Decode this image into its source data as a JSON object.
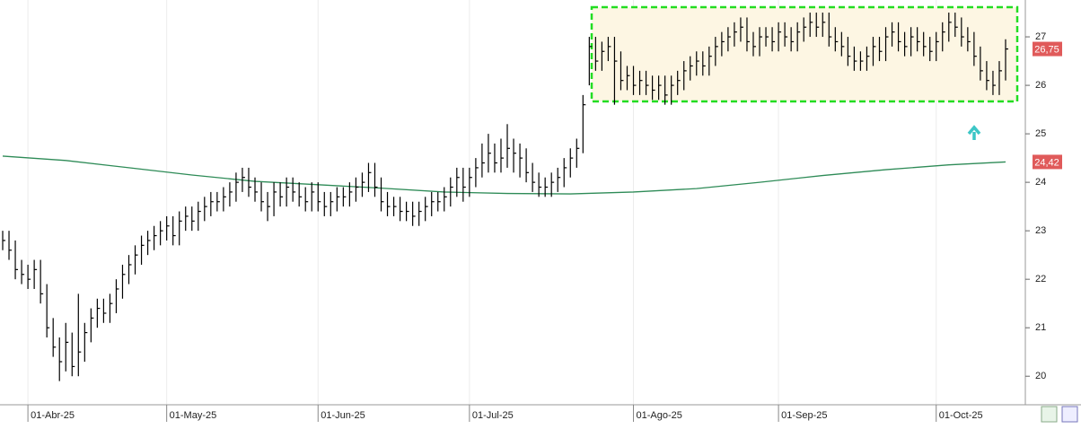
{
  "chart_data": {
    "type": "ohlc",
    "categories": [
      null,
      null,
      null,
      null,
      "01-Abr-25",
      null,
      null,
      null,
      null,
      null,
      null,
      null,
      null,
      null,
      null,
      null,
      null,
      null,
      null,
      null,
      null,
      null,
      null,
      null,
      null,
      null,
      "01-May-25",
      null,
      null,
      null,
      null,
      null,
      null,
      null,
      null,
      null,
      null,
      null,
      null,
      null,
      null,
      null,
      null,
      null,
      null,
      null,
      null,
      null,
      null,
      null,
      "01-Jun-25",
      null,
      null,
      null,
      null,
      null,
      null,
      null,
      null,
      null,
      null,
      null,
      null,
      null,
      null,
      null,
      null,
      null,
      null,
      null,
      null,
      null,
      null,
      null,
      "01-Jul-25",
      null,
      null,
      null,
      null,
      null,
      null,
      null,
      null,
      null,
      null,
      null,
      null,
      null,
      null,
      null,
      null,
      null,
      null,
      null,
      null,
      null,
      null,
      null,
      null,
      null,
      "01-Ago-25",
      null,
      null,
      null,
      null,
      null,
      null,
      null,
      null,
      null,
      null,
      null,
      null,
      null,
      null,
      null,
      null,
      null,
      null,
      null,
      null,
      null,
      null,
      "01-Sep-25",
      null,
      null,
      null,
      null,
      null,
      null,
      null,
      null,
      null,
      null,
      null,
      null,
      null,
      null,
      null,
      null,
      null,
      null,
      null,
      null,
      null,
      null,
      null,
      null,
      "01-Oct-25",
      null,
      null,
      null,
      null,
      null,
      null,
      null,
      null,
      null,
      null,
      null
    ],
    "high": [
      23.0,
      23.0,
      22.8,
      22.4,
      22.3,
      22.4,
      22.4,
      21.9,
      21.2,
      20.8,
      21.1,
      20.9,
      21.7,
      21.1,
      21.4,
      21.6,
      21.6,
      21.7,
      22.0,
      22.3,
      22.5,
      22.7,
      22.9,
      23.0,
      23.1,
      23.2,
      23.3,
      23.3,
      23.4,
      23.5,
      23.5,
      23.6,
      23.7,
      23.8,
      23.8,
      23.9,
      24.0,
      24.2,
      24.3,
      24.3,
      24.1,
      24.0,
      23.8,
      24.0,
      24.0,
      24.1,
      24.1,
      24.0,
      23.9,
      24.0,
      24.0,
      23.8,
      23.8,
      23.9,
      23.9,
      24.0,
      24.1,
      24.2,
      24.4,
      24.4,
      24.1,
      23.8,
      23.7,
      23.7,
      23.6,
      23.6,
      23.6,
      23.7,
      23.8,
      23.8,
      23.9,
      24.1,
      24.3,
      24.3,
      24.3,
      24.5,
      24.8,
      25.0,
      24.8,
      24.9,
      25.2,
      24.9,
      24.8,
      24.7,
      24.4,
      24.2,
      24.1,
      24.2,
      24.3,
      24.5,
      24.7,
      24.9,
      25.8,
      27.0,
      27.0,
      26.9,
      27.0,
      27.0,
      26.7,
      26.4,
      26.4,
      26.3,
      26.3,
      26.2,
      26.2,
      26.2,
      26.2,
      26.3,
      26.5,
      26.6,
      26.7,
      26.7,
      26.8,
      27.0,
      27.1,
      27.2,
      27.3,
      27.4,
      27.4,
      27.1,
      27.2,
      27.2,
      27.2,
      27.3,
      27.3,
      27.2,
      27.3,
      27.4,
      27.5,
      27.5,
      27.5,
      27.5,
      27.2,
      27.1,
      27.0,
      26.8,
      26.7,
      26.8,
      27.0,
      27.0,
      27.2,
      27.3,
      27.3,
      27.1,
      27.2,
      27.2,
      27.1,
      27.0,
      27.1,
      27.3,
      27.5,
      27.5,
      27.4,
      27.2,
      27.1,
      26.8,
      26.5,
      26.3,
      26.5,
      26.95
    ],
    "low": [
      22.6,
      22.4,
      22.0,
      21.9,
      21.8,
      21.8,
      21.5,
      20.8,
      20.4,
      19.9,
      20.1,
      20.0,
      20.0,
      20.3,
      20.7,
      21.0,
      21.1,
      21.1,
      21.3,
      21.6,
      21.9,
      22.1,
      22.3,
      22.5,
      22.6,
      22.7,
      22.8,
      22.7,
      22.7,
      23.0,
      23.0,
      23.0,
      23.2,
      23.3,
      23.4,
      23.4,
      23.5,
      23.6,
      23.8,
      23.7,
      23.6,
      23.4,
      23.2,
      23.3,
      23.5,
      23.5,
      23.6,
      23.5,
      23.4,
      23.4,
      23.4,
      23.3,
      23.3,
      23.4,
      23.5,
      23.5,
      23.6,
      23.7,
      23.8,
      23.7,
      23.4,
      23.3,
      23.3,
      23.2,
      23.2,
      23.1,
      23.1,
      23.2,
      23.3,
      23.4,
      23.4,
      23.5,
      23.7,
      23.6,
      23.7,
      23.9,
      24.1,
      24.2,
      24.2,
      24.2,
      24.3,
      24.2,
      24.1,
      24.0,
      23.8,
      23.7,
      23.7,
      23.7,
      23.8,
      23.9,
      24.1,
      24.3,
      24.6,
      26.0,
      26.3,
      26.3,
      26.5,
      25.6,
      25.9,
      25.9,
      25.8,
      25.8,
      25.8,
      25.7,
      25.7,
      25.6,
      25.6,
      25.8,
      25.9,
      26.1,
      26.2,
      26.2,
      26.2,
      26.4,
      26.6,
      26.7,
      26.8,
      26.9,
      26.7,
      26.6,
      26.6,
      26.8,
      26.7,
      26.7,
      26.8,
      26.7,
      26.7,
      26.9,
      27.0,
      27.0,
      27.0,
      26.8,
      26.7,
      26.6,
      26.4,
      26.3,
      26.3,
      26.3,
      26.4,
      26.5,
      26.5,
      26.8,
      26.7,
      26.6,
      26.6,
      26.7,
      26.6,
      26.5,
      26.5,
      26.7,
      26.9,
      27.0,
      26.8,
      26.7,
      26.4,
      26.1,
      25.9,
      25.8,
      25.8,
      26.1
    ],
    "close": [
      22.8,
      22.6,
      22.2,
      22.1,
      22.0,
      22.2,
      21.7,
      21.0,
      20.6,
      20.3,
      20.7,
      20.2,
      20.5,
      20.9,
      21.2,
      21.4,
      21.3,
      21.5,
      21.8,
      22.1,
      22.3,
      22.5,
      22.7,
      22.8,
      22.9,
      23.0,
      23.1,
      22.9,
      23.2,
      23.3,
      23.2,
      23.4,
      23.5,
      23.6,
      23.6,
      23.7,
      23.8,
      24.0,
      24.1,
      23.9,
      23.8,
      23.6,
      23.5,
      23.8,
      23.7,
      23.9,
      23.8,
      23.7,
      23.6,
      23.8,
      23.6,
      23.5,
      23.6,
      23.7,
      23.7,
      23.8,
      23.9,
      24.0,
      24.2,
      23.9,
      23.6,
      23.5,
      23.5,
      23.4,
      23.4,
      23.3,
      23.4,
      23.5,
      23.6,
      23.6,
      23.7,
      23.9,
      24.1,
      23.9,
      24.1,
      24.3,
      24.4,
      24.6,
      24.4,
      24.5,
      24.7,
      24.6,
      24.5,
      24.2,
      24.0,
      23.9,
      23.9,
      24.0,
      24.1,
      24.3,
      24.5,
      24.7,
      25.6,
      26.8,
      26.5,
      26.7,
      26.8,
      26.5,
      26.1,
      26.2,
      26.0,
      26.1,
      26.0,
      25.9,
      26.0,
      25.8,
      26.0,
      26.1,
      26.3,
      26.4,
      26.5,
      26.4,
      26.6,
      26.8,
      26.9,
      27.0,
      27.1,
      27.2,
      26.9,
      26.8,
      27.0,
      27.0,
      26.9,
      27.1,
      27.0,
      26.9,
      27.1,
      27.2,
      27.3,
      27.2,
      27.3,
      27.0,
      26.9,
      26.8,
      26.6,
      26.5,
      26.5,
      26.6,
      26.8,
      26.7,
      27.0,
      27.1,
      26.9,
      26.8,
      27.0,
      26.9,
      26.8,
      26.7,
      26.9,
      27.1,
      27.3,
      27.2,
      27.0,
      26.9,
      26.6,
      26.3,
      26.1,
      26.0,
      26.3,
      26.75
    ],
    "color": "#000000",
    "moving_average": {
      "x": [
        0,
        10,
        20,
        30,
        40,
        50,
        60,
        70,
        80,
        90,
        100,
        110,
        120,
        130,
        140,
        150,
        159
      ],
      "values": [
        24.54,
        24.45,
        24.3,
        24.15,
        24.02,
        23.95,
        23.88,
        23.8,
        23.77,
        23.76,
        23.8,
        23.87,
        24.0,
        24.14,
        24.26,
        24.36,
        24.42
      ],
      "color": "#2e8b57"
    },
    "markers": [
      {
        "value": 26.75,
        "label": "26,75"
      },
      {
        "value": 24.42,
        "label": "24,42"
      }
    ],
    "marker_color": "#e05a5a",
    "ylim": [
      19.43,
      27.76
    ],
    "yticks": [
      20,
      21,
      22,
      23,
      24,
      25,
      26,
      27
    ],
    "grid": true
  }
}
